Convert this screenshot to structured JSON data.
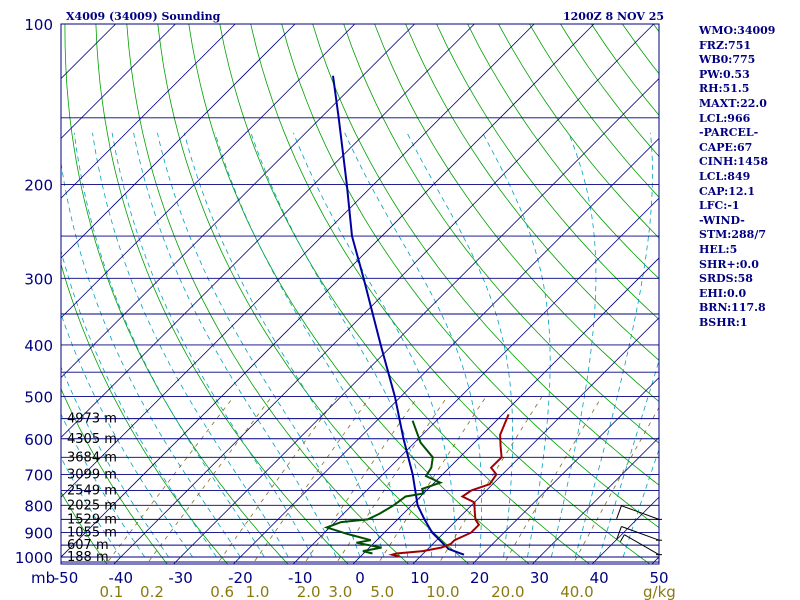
{
  "header": {
    "station_title": "X4009 (34009) Sounding",
    "valid_time": "1200Z  8 NOV 25",
    "mb_label": "mb"
  },
  "indices": [
    "WMO:34009",
    "FRZ:751",
    "WB0:775",
    "PW:0.53",
    "RH:51.5",
    "MAXT:22.0",
    "LCL:966",
    "-PARCEL-",
    "CAPE:67",
    "CINH:1458",
    "LCL:849",
    "CAP:12.1",
    "LFC:-1",
    "-WIND-",
    "STM:288/7",
    "HEL:5",
    "SHR+:0.0",
    "SRDS:58",
    "EHI:0.0",
    "BRN:117.8",
    "BSHR:1"
  ],
  "colors": {
    "frame": "#000080",
    "isobar": "#000080",
    "isotherm": "#000080",
    "dry_adiabat": "#00a000",
    "moist_adiabat": "#00a0c0",
    "mixing_ratio": "#807020",
    "temperature": "#a00000",
    "dewpoint": "#005000",
    "parcel": "#0000a0",
    "barb": "#000000"
  },
  "chart_data": {
    "type": "skew-t",
    "pressure_range_mb": [
      1000,
      100
    ],
    "pressure_tick_labels": [
      "100",
      "200",
      "300",
      "400",
      "500",
      "600",
      "700",
      "800",
      "900",
      "1000"
    ],
    "isobars_mb": [
      100,
      150,
      200,
      250,
      300,
      350,
      400,
      450,
      500,
      550,
      600,
      650,
      700,
      750,
      800,
      850,
      900,
      950,
      1000
    ],
    "temperature_range_c": [
      -50,
      50
    ],
    "temperature_tick_labels": [
      "-50",
      "-40",
      "-30",
      "-20",
      "-10",
      "0",
      "10",
      "20",
      "30",
      "40",
      "50"
    ],
    "temperature_ticks_c": [
      -50,
      -40,
      -30,
      -20,
      -10,
      0,
      10,
      20,
      30,
      40,
      50
    ],
    "mixing_ratio_labels": [
      "0.1",
      "0.2",
      "0.6",
      "1.0",
      "2.0",
      "3.0",
      "5.0",
      "10.0",
      "20.0",
      "40.0"
    ],
    "mixing_ratio_values_gkg": [
      0.1,
      0.2,
      0.6,
      1.0,
      2.0,
      3.0,
      5.0,
      10.0,
      20.0,
      40.0
    ],
    "mixing_ratio_unit": "g/kg",
    "height_labels": [
      "4973 m",
      "4305 m",
      "3684 m",
      "3099 m",
      "2549 m",
      "2025 m",
      "1529 m",
      "1055 m",
      "607 m",
      "188 m"
    ],
    "height_label_pressures_mb": [
      550,
      600,
      650,
      700,
      750,
      800,
      850,
      900,
      950,
      1000
    ],
    "temperature_profile": [
      {
        "p": 998,
        "t": 6.5
      },
      {
        "p": 990,
        "t": 5.0
      },
      {
        "p": 985,
        "t": 5.5
      },
      {
        "p": 975,
        "t": 9.5
      },
      {
        "p": 960,
        "t": 12.0
      },
      {
        "p": 945,
        "t": 13.0
      },
      {
        "p": 930,
        "t": 13.0
      },
      {
        "p": 900,
        "t": 14.5
      },
      {
        "p": 870,
        "t": 14.5
      },
      {
        "p": 850,
        "t": 13.0
      },
      {
        "p": 820,
        "t": 11.5
      },
      {
        "p": 790,
        "t": 10.0
      },
      {
        "p": 770,
        "t": 7.0
      },
      {
        "p": 750,
        "t": 7.5
      },
      {
        "p": 730,
        "t": 9.5
      },
      {
        "p": 700,
        "t": 9.0
      },
      {
        "p": 680,
        "t": 7.0
      },
      {
        "p": 650,
        "t": 7.0
      },
      {
        "p": 620,
        "t": 5.0
      },
      {
        "p": 590,
        "t": 3.0
      },
      {
        "p": 540,
        "t": 1.0
      }
    ],
    "dewpoint_profile": [
      {
        "p": 985,
        "t": 1.5
      },
      {
        "p": 975,
        "t": -0.5
      },
      {
        "p": 960,
        "t": 2.0
      },
      {
        "p": 940,
        "t": -3.0
      },
      {
        "p": 930,
        "t": -1.0
      },
      {
        "p": 905,
        "t": -6.0
      },
      {
        "p": 880,
        "t": -10.5
      },
      {
        "p": 860,
        "t": -9.0
      },
      {
        "p": 850,
        "t": -5.0
      },
      {
        "p": 830,
        "t": -4.0
      },
      {
        "p": 800,
        "t": -3.0
      },
      {
        "p": 770,
        "t": -2.5
      },
      {
        "p": 760,
        "t": 0.0
      },
      {
        "p": 745,
        "t": -1.0
      },
      {
        "p": 725,
        "t": 1.0
      },
      {
        "p": 705,
        "t": -2.5
      },
      {
        "p": 680,
        "t": -3.0
      },
      {
        "p": 650,
        "t": -4.5
      },
      {
        "p": 610,
        "t": -9.0
      },
      {
        "p": 555,
        "t": -14.0
      }
    ],
    "parcel_profile": [
      {
        "p": 990,
        "t": 17.0
      },
      {
        "p": 966,
        "t": 13.5
      },
      {
        "p": 900,
        "t": 8.0
      },
      {
        "p": 850,
        "t": 4.5
      },
      {
        "p": 800,
        "t": 1.0
      },
      {
        "p": 700,
        "t": -5.0
      },
      {
        "p": 600,
        "t": -12.5
      },
      {
        "p": 500,
        "t": -21.0
      },
      {
        "p": 400,
        "t": -32.0
      },
      {
        "p": 300,
        "t": -46.0
      },
      {
        "p": 250,
        "t": -55.0
      },
      {
        "p": 200,
        "t": -64.5
      },
      {
        "p": 150,
        "t": -77.0
      },
      {
        "p": 125,
        "t": -85.0
      }
    ],
    "wind_barbs": [
      {
        "p": 850,
        "dir": 290,
        "kt": 10
      },
      {
        "p": 930,
        "dir": 290,
        "kt": 10
      },
      {
        "p": 990,
        "dir": 300,
        "kt": 5
      }
    ]
  }
}
